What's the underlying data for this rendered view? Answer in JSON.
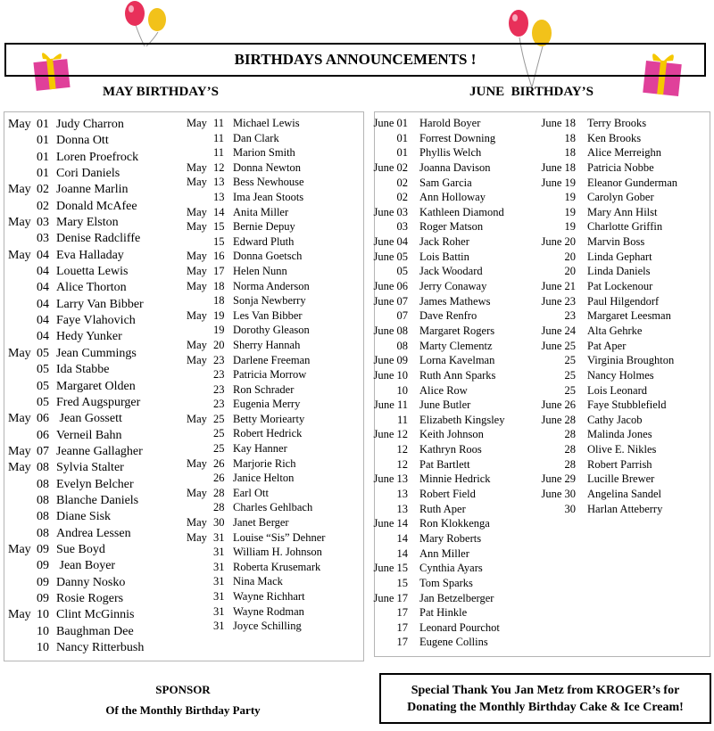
{
  "title": "BIRTHDAYS ANNOUNCEMENTS !",
  "may_heading": "MAY BIRTHDAY’S",
  "june_heading": "JUNE  BIRTHDAY’S",
  "may": {
    "col1": [
      [
        "May",
        "01",
        "Judy Charron"
      ],
      [
        "",
        "01",
        "Donna Ott"
      ],
      [
        "",
        "01",
        "Loren Proefrock"
      ],
      [
        "",
        "01",
        "Cori Daniels"
      ],
      [
        "May",
        "02",
        "Joanne Marlin"
      ],
      [
        "",
        "02",
        "Donald McAfee"
      ],
      [
        "May",
        "03",
        "Mary Elston"
      ],
      [
        "",
        "03",
        "Denise Radcliffe"
      ],
      [
        "May",
        "04",
        "Eva Halladay"
      ],
      [
        "",
        "04",
        "Louetta Lewis"
      ],
      [
        "",
        "04",
        "Alice Thorton"
      ],
      [
        "",
        "04",
        "Larry Van Bibber"
      ],
      [
        "",
        "04",
        "Faye Vlahovich"
      ],
      [
        "",
        "04",
        "Hedy Yunker"
      ],
      [
        "May",
        "05",
        "Jean Cummings"
      ],
      [
        "",
        "05",
        "Ida Stabbe"
      ],
      [
        "",
        "05",
        "Margaret Olden"
      ],
      [
        "",
        "05",
        "Fred Augspurger"
      ],
      [
        "May",
        "06",
        " Jean Gossett"
      ],
      [
        "",
        "06",
        "Verneil Bahn"
      ],
      [
        "May",
        "07",
        "Jeanne Gallagher"
      ],
      [
        "May",
        "08",
        "Sylvia Stalter"
      ],
      [
        "",
        "08",
        "Evelyn Belcher"
      ],
      [
        "",
        "08",
        "Blanche Daniels"
      ],
      [
        "",
        "08",
        "Diane Sisk"
      ],
      [
        "",
        "08",
        "Andrea Lessen"
      ],
      [
        "May",
        "09",
        "Sue Boyd"
      ],
      [
        "",
        "09",
        " Jean Boyer"
      ],
      [
        "",
        "09",
        "Danny Nosko"
      ],
      [
        "",
        "09",
        "Rosie Rogers"
      ],
      [
        "May",
        "10",
        "Clint McGinnis"
      ],
      [
        "",
        "10",
        "Baughman Dee"
      ],
      [
        "",
        "10",
        "Nancy Ritterbush"
      ]
    ],
    "col2": [
      [
        "May",
        "11",
        "Michael Lewis"
      ],
      [
        "",
        "11",
        "Dan Clark"
      ],
      [
        "",
        "11",
        "Marion Smith"
      ],
      [
        "May",
        "12",
        "Donna Newton"
      ],
      [
        "May",
        "13",
        "Bess Newhouse"
      ],
      [
        "",
        "13",
        "Ima Jean Stoots"
      ],
      [
        "May",
        "14",
        "Anita Miller"
      ],
      [
        "May",
        "15",
        "Bernie Depuy"
      ],
      [
        "",
        "15",
        "Edward Pluth"
      ],
      [
        "May",
        "16",
        "Donna Goetsch"
      ],
      [
        "May",
        "17",
        "Helen Nunn"
      ],
      [
        "May",
        "18",
        "Norma Anderson"
      ],
      [
        "",
        "18",
        "Sonja Newberry"
      ],
      [
        "May",
        "19",
        "Les Van Bibber"
      ],
      [
        "",
        "19",
        "Dorothy Gleason"
      ],
      [
        "May",
        "20",
        "Sherry Hannah"
      ],
      [
        "May",
        "23",
        "Darlene Freeman"
      ],
      [
        "",
        "23",
        "Patricia Morrow"
      ],
      [
        "",
        "23",
        "Ron Schrader"
      ],
      [
        "",
        "23",
        "Eugenia Merry"
      ],
      [
        "May",
        "25",
        "Betty Moriearty"
      ],
      [
        "",
        "25",
        "Robert Hedrick"
      ],
      [
        "",
        "25",
        "Kay Hanner"
      ],
      [
        "May",
        "26",
        "Marjorie Rich"
      ],
      [
        "",
        "26",
        "Janice Helton"
      ],
      [
        "May",
        "28",
        "Earl Ott"
      ],
      [
        "",
        "28",
        "Charles Gehlbach"
      ],
      [
        "May",
        "30",
        "Janet Berger"
      ],
      [
        "May",
        "31",
        "Louise “Sis” Dehner"
      ],
      [
        "",
        "31",
        "William H. Johnson"
      ],
      [
        "",
        "31",
        "Roberta Krusemark"
      ],
      [
        "",
        "31",
        "Nina Mack"
      ],
      [
        "",
        "31",
        "Wayne Richhart"
      ],
      [
        "",
        "31",
        "Wayne Rodman"
      ],
      [
        "",
        "31",
        "Joyce Schilling"
      ]
    ]
  },
  "june": {
    "col1": [
      [
        "June 01",
        "Harold Boyer"
      ],
      [
        "01",
        "Forrest Downing"
      ],
      [
        "01",
        "Phyllis Welch"
      ],
      [
        "June 02",
        "Joanna Davison"
      ],
      [
        "02",
        "Sam Garcia"
      ],
      [
        "02",
        "Ann Holloway"
      ],
      [
        "June 03",
        "Kathleen Diamond"
      ],
      [
        "03",
        "Roger Matson"
      ],
      [
        "June 04",
        "Jack Roher"
      ],
      [
        "June 05",
        "Lois Battin"
      ],
      [
        "05",
        "Jack Woodard"
      ],
      [
        "June 06",
        "Jerry Conaway"
      ],
      [
        "June 07",
        "James Mathews"
      ],
      [
        "07",
        "Dave Renfro"
      ],
      [
        "June 08",
        "Margaret Rogers"
      ],
      [
        "08",
        "Marty Clementz"
      ],
      [
        "June 09",
        "Lorna Kavelman"
      ],
      [
        "June 10",
        "Ruth Ann Sparks"
      ],
      [
        "10",
        "Alice Row"
      ],
      [
        "June 11",
        "June Butler"
      ],
      [
        "11",
        "Elizabeth Kingsley"
      ],
      [
        "June 12",
        "Keith Johnson"
      ],
      [
        "12",
        "Kathryn Roos"
      ],
      [
        "12",
        "Pat Bartlett"
      ],
      [
        "June 13",
        "Minnie Hedrick"
      ],
      [
        "13",
        "Robert Field"
      ],
      [
        "13",
        "Ruth Aper"
      ],
      [
        "June 14",
        "Ron Klokkenga"
      ],
      [
        "14",
        "Mary Roberts"
      ],
      [
        "14",
        "Ann Miller"
      ],
      [
        "June 15",
        "Cynthia Ayars"
      ],
      [
        "15",
        "Tom Sparks"
      ],
      [
        "June 17",
        "Jan Betzelberger"
      ],
      [
        "17",
        "Pat Hinkle"
      ],
      [
        "17",
        "Leonard Pourchot"
      ],
      [
        "17",
        "Eugene Collins"
      ]
    ],
    "col2": [
      [
        "June 18",
        "Terry Brooks"
      ],
      [
        "18",
        "Ken Brooks"
      ],
      [
        "18",
        "Alice Merreighn"
      ],
      [
        "June 18",
        "Patricia Nobbe"
      ],
      [
        "June 19",
        "Eleanor Gunderman"
      ],
      [
        "19",
        "Carolyn Gober"
      ],
      [
        "19",
        "Mary Ann Hilst"
      ],
      [
        "19",
        "Charlotte Griffin"
      ],
      [
        "June 20",
        "Marvin Boss"
      ],
      [
        "20",
        "Linda Gephart"
      ],
      [
        "20",
        "Linda Daniels"
      ],
      [
        "June 21",
        "Pat Lockenour"
      ],
      [
        "June 23",
        "Paul Hilgendorf"
      ],
      [
        "23",
        "Margaret Leesman"
      ],
      [
        "June 24",
        "Alta Gehrke"
      ],
      [
        "June 25",
        "Pat Aper"
      ],
      [
        "25",
        "Virginia Broughton"
      ],
      [
        "25",
        "Nancy Holmes"
      ],
      [
        "25",
        "Lois Leonard"
      ],
      [
        "June 26",
        "Faye Stubblefield"
      ],
      [
        "June 28",
        "Cathy Jacob"
      ],
      [
        "28",
        "Malinda Jones"
      ],
      [
        "28",
        "Olive E. Nikles"
      ],
      [
        "28",
        "Robert Parrish"
      ],
      [
        "June 29",
        "Lucille Brewer"
      ],
      [
        "June 30",
        "Angelina Sandel"
      ],
      [
        "30",
        "Harlan Atteberry"
      ]
    ]
  },
  "sponsor": {
    "line1": "SPONSOR",
    "line2": "Of the Monthly Birthday Party"
  },
  "thanks": {
    "line1": "Special Thank You Jan Metz from KROGER’s for",
    "line2": "Donating the Monthly Birthday Cake & Ice Cream!"
  },
  "colors": {
    "balloon_red": "#e8305a",
    "balloon_yellow": "#f2c21a",
    "gift_pink": "#e0409a",
    "ribbon": "#f5c800"
  }
}
